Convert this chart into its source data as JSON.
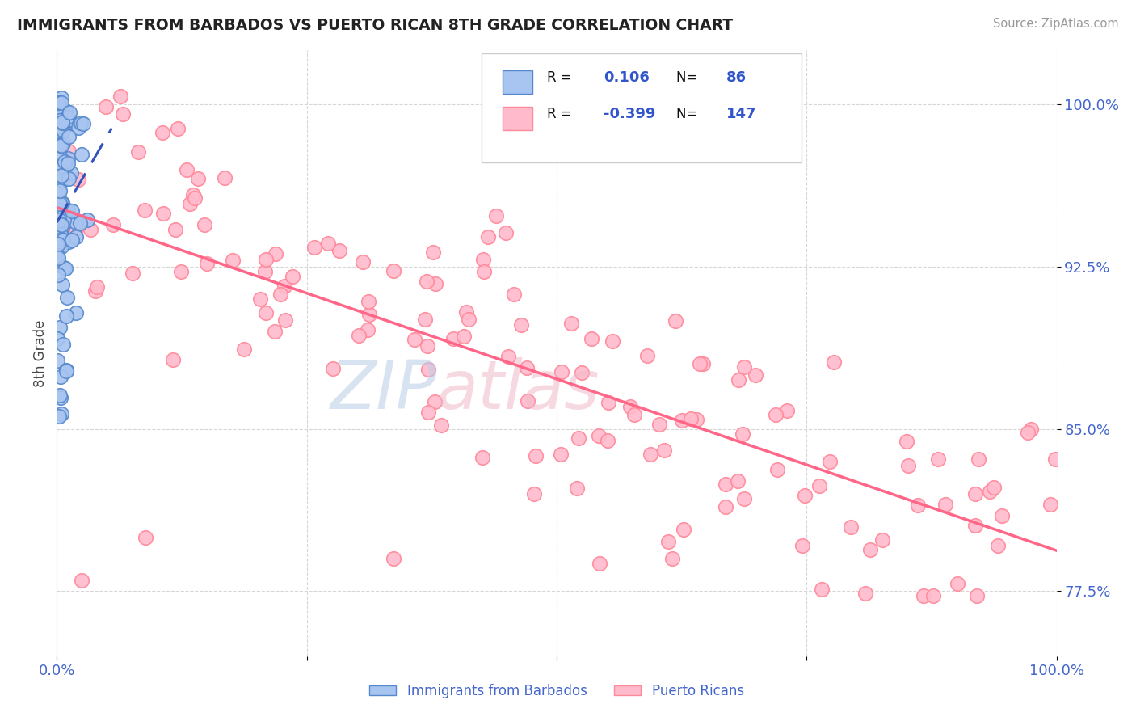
{
  "title": "IMMIGRANTS FROM BARBADOS VS PUERTO RICAN 8TH GRADE CORRELATION CHART",
  "source_text": "Source: ZipAtlas.com",
  "ylabel": "8th Grade",
  "xmin": 0.0,
  "xmax": 1.0,
  "ymin": 0.745,
  "ymax": 1.025,
  "yticks": [
    0.775,
    0.85,
    0.925,
    1.0
  ],
  "ytick_labels": [
    "77.5%",
    "85.0%",
    "92.5%",
    "100.0%"
  ],
  "xticks": [
    0.0,
    0.25,
    0.5,
    0.75,
    1.0
  ],
  "xtick_labels": [
    "0.0%",
    "",
    "",
    "",
    "100.0%"
  ],
  "legend_r_blue": "0.106",
  "legend_n_blue": "86",
  "legend_r_pink": "-0.399",
  "legend_n_pink": "147",
  "blue_fill": "#a8c4f0",
  "blue_edge": "#5588cc",
  "pink_fill": "#ffbbcc",
  "pink_edge": "#ff8899",
  "blue_trend_color": "#3355bb",
  "pink_trend_color": "#ff6688",
  "watermark_zip_color": "#b8cce8",
  "watermark_atlas_color": "#f0b8c8",
  "background_color": "#ffffff",
  "grid_color": "#cccccc",
  "label_color": "#4466cc",
  "title_color": "#222222",
  "source_color": "#999999",
  "legend_text_color": "#111111",
  "legend_value_color": "#3355cc"
}
